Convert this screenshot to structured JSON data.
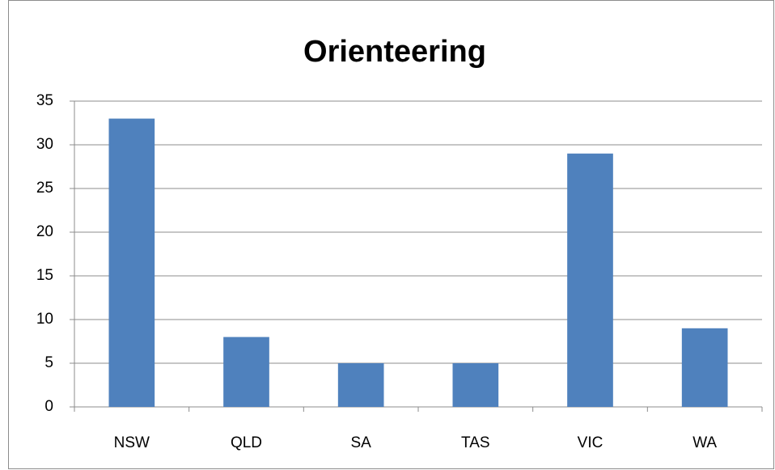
{
  "chart_data": {
    "type": "bar",
    "title": "Orienteering",
    "categories": [
      "NSW",
      "QLD",
      "SA",
      "TAS",
      "VIC",
      "WA"
    ],
    "values": [
      33,
      8,
      5,
      5,
      29,
      9
    ],
    "color": "#4f81bd",
    "ylim": [
      0,
      35
    ],
    "yticks": [
      0,
      5,
      10,
      15,
      20,
      25,
      30,
      35
    ],
    "grid": true
  }
}
